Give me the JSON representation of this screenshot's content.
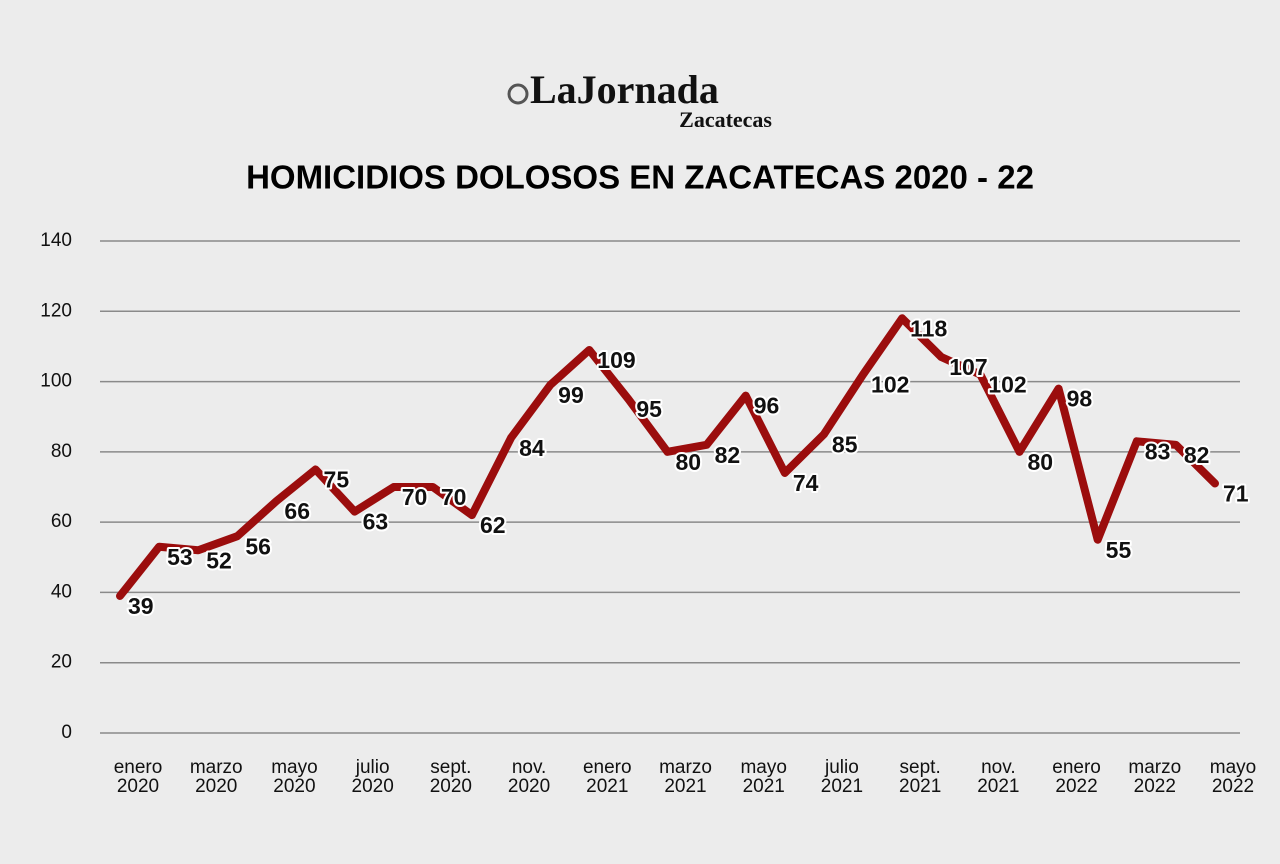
{
  "brand": {
    "name": "LaJornada",
    "sub": "Zacatecas"
  },
  "chart_data": {
    "type": "line",
    "title": "HOMICIDIOS DOLOSOS EN ZACATECAS 2020 - 22",
    "categories": [
      "enero 2020",
      null,
      "marzo 2020",
      null,
      "mayo 2020",
      null,
      "julio 2020",
      null,
      "sept. 2020",
      null,
      "nov. 2020",
      null,
      "enero 2021",
      null,
      "marzo 2021",
      null,
      "mayo 2021",
      null,
      "julio 2021",
      null,
      "sept. 2021",
      null,
      "nov. 2021",
      null,
      "enero 2022",
      null,
      "marzo 2022",
      null,
      "mayo 2022"
    ],
    "series": [
      {
        "name": "Homicidios dolosos",
        "color": "#9b0d0d",
        "values": [
          39,
          53,
          52,
          56,
          66,
          75,
          63,
          70,
          70,
          62,
          84,
          99,
          109,
          95,
          80,
          82,
          96,
          74,
          85,
          102,
          118,
          107,
          102,
          80,
          98,
          55,
          83,
          82,
          71
        ]
      }
    ],
    "ylim": [
      0,
      140
    ],
    "yticks": [
      0,
      20,
      40,
      60,
      80,
      100,
      120,
      140
    ],
    "grid": true
  }
}
